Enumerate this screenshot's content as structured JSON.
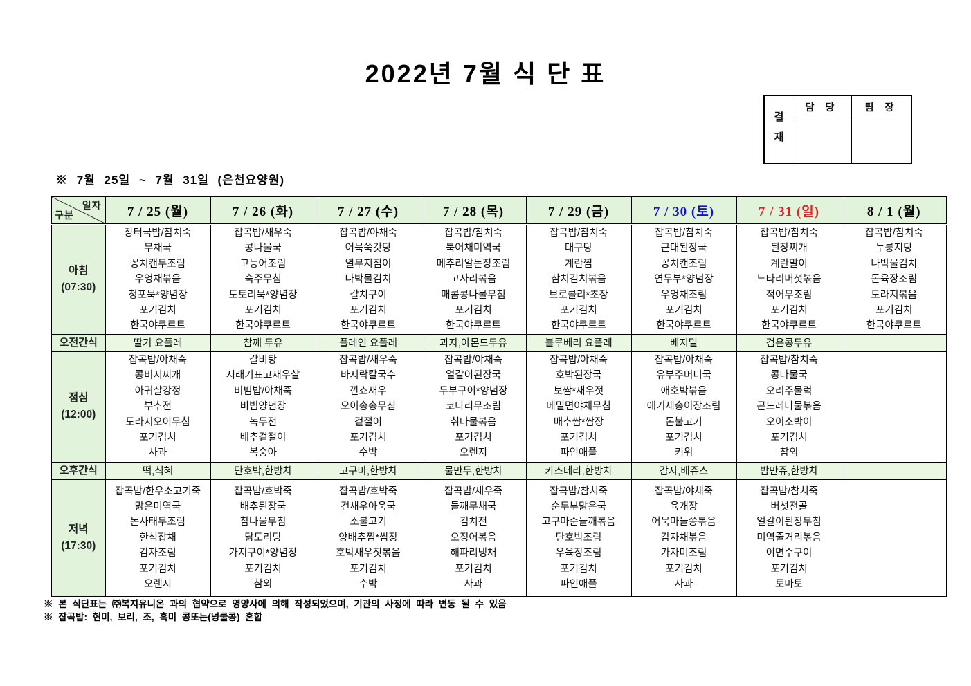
{
  "title": "2022년 7월 식 단 표",
  "approval": {
    "label": "결재",
    "columns": [
      "담 당",
      "팀 장"
    ]
  },
  "subtitle": "※ 7월 25일 ~ 7월 31일 (은천요양원)",
  "colors": {
    "weekday": "#000000",
    "saturday": "#1414cc",
    "sunday": "#e62020",
    "header_green": "#e1f3da",
    "snack_green": "#eaf7e3"
  },
  "table": {
    "corner": {
      "top": "일자",
      "bottom": "구분"
    },
    "columns": [
      {
        "label": "7 / 25 (월)",
        "color": "#000000"
      },
      {
        "label": "7 / 26 (화)",
        "color": "#000000"
      },
      {
        "label": "7 / 27 (수)",
        "color": "#000000"
      },
      {
        "label": "7 / 28 (목)",
        "color": "#000000"
      },
      {
        "label": "7 / 29 (금)",
        "color": "#000000"
      },
      {
        "label": "7 / 30 (토)",
        "color": "#1414cc"
      },
      {
        "label": "7 / 31 (일)",
        "color": "#e62020"
      },
      {
        "label": "8 / 1 (월)",
        "color": "#000000"
      }
    ],
    "rows": [
      {
        "kind": "meal",
        "css": "r-breakfast",
        "label": "아침\n(07:30)",
        "cells": [
          [
            "장터국밥/참치죽",
            "무채국",
            "꽁치캔무조림",
            "우엉채볶음",
            "청포묵*양념장",
            "포기김치",
            "한국야쿠르트"
          ],
          [
            "잡곡밥/새우죽",
            "콩나물국",
            "고등어조림",
            "숙주무침",
            "도토리묵*양념장",
            "포기김치",
            "한국야쿠르트"
          ],
          [
            "잡곡밥/야채죽",
            "어묵쑥갓탕",
            "열무지짐이",
            "나박물김치",
            "갈치구이",
            "포기김치",
            "한국야쿠르트"
          ],
          [
            "잡곡밥/참치죽",
            "북어채미역국",
            "메추리알돈장조림",
            "고사리볶음",
            "매콤콩나물무침",
            "포기김치",
            "한국야쿠르트"
          ],
          [
            "잡곡밥/참치죽",
            "대구탕",
            "계란찜",
            "참치김치볶음",
            "브로콜리*초장",
            "포기김치",
            "한국야쿠르트"
          ],
          [
            "잡곡밥/참치죽",
            "근대된장국",
            "꽁치캔조림",
            "연두부*양념장",
            "우엉채조림",
            "포기김치",
            "한국야쿠르트"
          ],
          [
            "잡곡밥/참치죽",
            "된장찌개",
            "계란말이",
            "느타리버섯볶음",
            "적어무조림",
            "포기김치",
            "한국야쿠르트"
          ],
          [
            "잡곡밥/참치죽",
            "누룽지탕",
            "나박물김치",
            "돈육장조림",
            "도라지볶음",
            "포기김치",
            "한국야쿠르트"
          ]
        ]
      },
      {
        "kind": "snack",
        "css": "r-snack",
        "label": "오전간식",
        "cells": [
          "딸기 요플레",
          "참깨 두유",
          "플레인 요플레",
          "과자,아몬드두유",
          "블루베리 요플레",
          "베지밀",
          "검은콩두유",
          ""
        ]
      },
      {
        "kind": "meal",
        "css": "r-lunch",
        "label": "점심\n(12:00)",
        "cells": [
          [
            "잡곡밥/야채죽",
            "콩비지찌개",
            "아귀살강정",
            "부추전",
            "도라지오이무침",
            "포기김치",
            "사과"
          ],
          [
            "갈비탕",
            "시래기표고새우살",
            "비빔밥/야채죽",
            "비빔양념장",
            "녹두전",
            "배추겉절이",
            "복숭아"
          ],
          [
            "잡곡밥/새우죽",
            "바지락칼국수",
            "깐쇼새우",
            "오이송송무침",
            "겉절이",
            "포기김치",
            "수박"
          ],
          [
            "잡곡밥/야채죽",
            "얼갈이된장국",
            "두부구이*양념장",
            "코다리무조림",
            "취나물볶음",
            "포기김치",
            "오렌지"
          ],
          [
            "잡곡밥/야채죽",
            "호박된장국",
            "보쌈*새우젓",
            "메밀면야채무침",
            "배추쌈*쌈장",
            "포기김치",
            "파인애플"
          ],
          [
            "잡곡밥/야채죽",
            "유부주머니국",
            "애호박볶음",
            "애기새송이장조림",
            "돈불고기",
            "포기김치",
            "키위"
          ],
          [
            "잡곡밥/참치죽",
            "콩나물국",
            "오리주물럭",
            "곤드레나물볶음",
            "오이소박이",
            "포기김치",
            "참외"
          ],
          []
        ]
      },
      {
        "kind": "snack",
        "css": "r-snack",
        "label": "오후간식",
        "cells": [
          "떡,식혜",
          "단호박,한방차",
          "고구마,한방차",
          "물만두,한방차",
          "카스테라,한방차",
          "감자,배쥬스",
          "밤만쥬,한방차",
          ""
        ]
      },
      {
        "kind": "meal",
        "css": "r-dinner",
        "label": "저녁\n(17:30)",
        "cells": [
          [
            "잡곡밥/한우소고기죽",
            "맑은미역국",
            "돈사태무조림",
            "한식잡채",
            "감자조림",
            "포기김치",
            "오렌지"
          ],
          [
            "잡곡밥/호박죽",
            "배추된장국",
            "참나물무침",
            "닭도리탕",
            "가지구이*양념장",
            "포기김치",
            "참외"
          ],
          [
            "잡곡밥/호박죽",
            "건새우아욱국",
            "소불고기",
            "양배추찜*쌈장",
            "호박새우젓볶음",
            "포기김치",
            "수박"
          ],
          [
            "잡곡밥/새우죽",
            "들깨무채국",
            "김치전",
            "오징어볶음",
            "해파리냉채",
            "포기김치",
            "사과"
          ],
          [
            "잡곡밥/참치죽",
            "순두부맑은국",
            "고구마순들깨볶음",
            "단호박조림",
            "우육장조림",
            "포기김치",
            "파인애플"
          ],
          [
            "잡곡밥/야채죽",
            "육개장",
            "어묵마늘쫑볶음",
            "감자채볶음",
            "가자미조림",
            "포기김치",
            "사과"
          ],
          [
            "잡곡밥/참치죽",
            "버섯전골",
            "얼갈이된장무침",
            "미역줄거리볶음",
            "이면수구이",
            "포기김치",
            "토마토"
          ],
          []
        ]
      }
    ]
  },
  "footnotes": [
    "※ 본 식단표는 ㈜복지유니온 과의 협약으로 영양사에 의해 작성되었으며, 기관의 사정에 따라 변동 될 수 있음",
    "※ 잡곡밥: 현미, 보리, 조, 흑미 콩또는(넝쿨콩) 혼합"
  ]
}
